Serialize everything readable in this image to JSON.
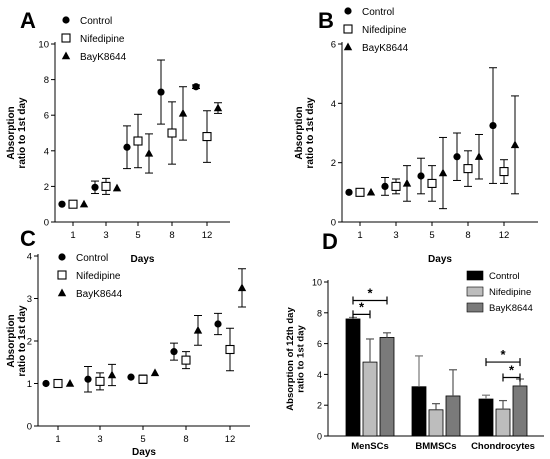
{
  "chart_data": [
    {
      "panel_letter": "A",
      "type": "scatter",
      "x_categories": [
        "1",
        "3",
        "5",
        "8",
        "12"
      ],
      "xlabel": "Days",
      "ylabel": [
        "Absorption",
        "ratio to 1st day"
      ],
      "ylim": [
        0,
        10
      ],
      "yticks": [
        0,
        2,
        4,
        6,
        8,
        10
      ],
      "legend_position": "top-left",
      "series": [
        {
          "name": "Control",
          "marker": "circle",
          "values": [
            1.0,
            1.95,
            4.2,
            7.3,
            7.6
          ],
          "errors": [
            0.0,
            0.35,
            1.2,
            1.8,
            0.1
          ]
        },
        {
          "name": "Nifedipine",
          "marker": "square",
          "values": [
            1.0,
            2.0,
            4.55,
            5.0,
            4.8
          ],
          "errors": [
            0.0,
            0.45,
            1.5,
            1.75,
            1.45
          ]
        },
        {
          "name": "BayK8644",
          "marker": "triangle",
          "values": [
            1.0,
            1.9,
            3.85,
            6.1,
            6.4
          ],
          "errors": [
            0.0,
            0.0,
            1.1,
            1.5,
            0.3
          ]
        }
      ]
    },
    {
      "panel_letter": "B",
      "type": "scatter",
      "x_categories": [
        "1",
        "3",
        "5",
        "8",
        "12"
      ],
      "xlabel": "Days",
      "ylabel": [
        "Absorption",
        "ratio to 1st day"
      ],
      "ylim": [
        0,
        6
      ],
      "yticks": [
        0,
        2,
        4,
        6
      ],
      "legend_position": "top-left",
      "series": [
        {
          "name": "Control",
          "marker": "circle",
          "values": [
            1.0,
            1.2,
            1.55,
            2.2,
            3.25
          ],
          "errors": [
            0.0,
            0.3,
            0.6,
            0.8,
            1.95
          ]
        },
        {
          "name": "Nifedipine",
          "marker": "square",
          "values": [
            1.0,
            1.2,
            1.3,
            1.8,
            1.7
          ],
          "errors": [
            0.0,
            0.25,
            0.6,
            0.6,
            0.4
          ]
        },
        {
          "name": "BayK8644",
          "marker": "triangle",
          "values": [
            1.0,
            1.3,
            1.65,
            2.2,
            2.6
          ],
          "errors": [
            0.0,
            0.6,
            1.2,
            0.75,
            1.65
          ]
        }
      ]
    },
    {
      "panel_letter": "C",
      "type": "scatter",
      "x_categories": [
        "1",
        "3",
        "5",
        "8",
        "12"
      ],
      "xlabel": "Days",
      "ylabel": [
        "Absorption",
        "ratio to 1st day"
      ],
      "ylim": [
        0,
        4
      ],
      "yticks": [
        0,
        1,
        2,
        3,
        4
      ],
      "legend_position": "top-left",
      "series": [
        {
          "name": "Control",
          "marker": "circle",
          "values": [
            1.0,
            1.1,
            1.15,
            1.75,
            2.4
          ],
          "errors": [
            0.0,
            0.3,
            0.0,
            0.2,
            0.25
          ]
        },
        {
          "name": "Nifedipine",
          "marker": "square",
          "values": [
            1.0,
            1.05,
            1.1,
            1.55,
            1.8
          ],
          "errors": [
            0.0,
            0.2,
            0.1,
            0.2,
            0.5
          ]
        },
        {
          "name": "BayK8644",
          "marker": "triangle",
          "values": [
            1.0,
            1.2,
            1.25,
            2.25,
            3.25
          ],
          "errors": [
            0.0,
            0.25,
            0.0,
            0.35,
            0.45
          ]
        }
      ]
    },
    {
      "panel_letter": "D",
      "type": "bar",
      "categories": [
        "MenSCs",
        "BMMSCs",
        "Chondrocytes"
      ],
      "ylabel": [
        "Absorption of 12th day",
        "ratio to 1st day"
      ],
      "ylim": [
        0,
        10
      ],
      "yticks": [
        0,
        2,
        4,
        6,
        8,
        10
      ],
      "legend_position": "top-right",
      "series": [
        {
          "name": "Control",
          "color": "#000000",
          "values": [
            7.6,
            3.2,
            2.4
          ],
          "errors": [
            0.1,
            2.0,
            0.25
          ]
        },
        {
          "name": "Nifedipine",
          "color": "#bdbdbd",
          "values": [
            4.8,
            1.7,
            1.75
          ],
          "errors": [
            1.5,
            0.4,
            0.55
          ]
        },
        {
          "name": "BayK8644",
          "color": "#7a7a7a",
          "values": [
            6.4,
            2.6,
            3.25
          ],
          "errors": [
            0.3,
            1.7,
            0.45
          ]
        }
      ],
      "significance": [
        {
          "group": "MenSCs",
          "from": "Control",
          "to": "BayK8644",
          "label": "*",
          "level": 8.8
        },
        {
          "group": "MenSCs",
          "from": "Control",
          "to": "Nifedipine",
          "label": "*",
          "level": 7.9
        },
        {
          "group": "Chondrocytes",
          "from": "Control",
          "to": "BayK8644",
          "label": "*",
          "level": 4.8
        },
        {
          "group": "Chondrocytes",
          "from": "Nifedipine",
          "to": "BayK8644",
          "label": "*",
          "level": 3.8
        }
      ]
    }
  ]
}
